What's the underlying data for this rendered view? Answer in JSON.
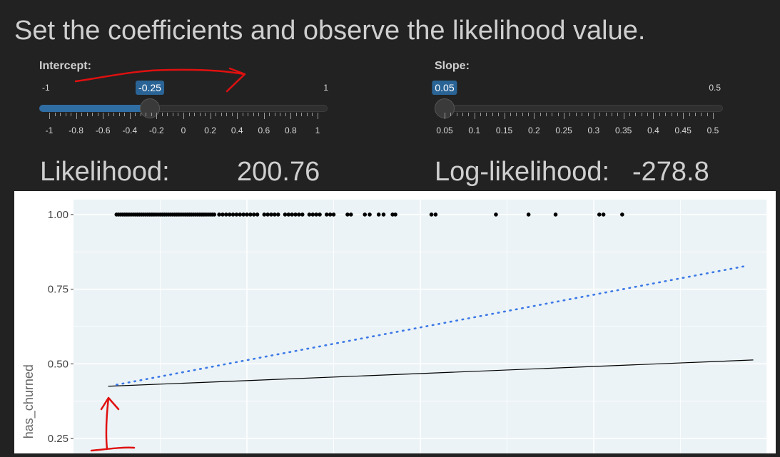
{
  "heading": "Set the coefficients and observe the likelihood value.",
  "intercept": {
    "label": "Intercept:",
    "min_label": "-1",
    "max_label": "1",
    "value_label": "-0.25",
    "min": -1,
    "max": 1,
    "value": -0.25,
    "ticks": [
      "-1",
      "-0.8",
      "-0.6",
      "-0.4",
      "-0.2",
      "0",
      "0.2",
      "0.4",
      "0.6",
      "0.8",
      "1"
    ]
  },
  "slope": {
    "label": "Slope:",
    "min_label": "0.05",
    "max_label": "0.5",
    "value_label": "0.05",
    "min": 0.05,
    "max": 0.5,
    "value": 0.05,
    "ticks": [
      "0.05",
      "0.1",
      "0.15",
      "0.2",
      "0.25",
      "0.3",
      "0.35",
      "0.4",
      "0.45",
      "0.5"
    ]
  },
  "likelihood": {
    "label": "Likelihood:",
    "value": "200.76"
  },
  "log_likelihood": {
    "label": "Log-likelihood:",
    "value": "-278.8"
  },
  "colors": {
    "accent": "#2a6496",
    "panel_bg": "#ebf3f6",
    "dotted_line": "#3b78e7",
    "annotation": "#e01010"
  },
  "chart_data": {
    "type": "scatter",
    "ylabel": "has_churned",
    "xlabel": "",
    "ylim": [
      0.2,
      1.05
    ],
    "xlim": [
      0,
      1
    ],
    "ytick_labels": [
      "1.00",
      "0.75",
      "0.50",
      "0.25"
    ],
    "yticks": [
      1.0,
      0.75,
      0.5,
      0.25
    ],
    "grid": true,
    "points_y": 1.0,
    "points_x": [
      0.062,
      0.065,
      0.068,
      0.071,
      0.074,
      0.077,
      0.08,
      0.083,
      0.086,
      0.089,
      0.092,
      0.095,
      0.098,
      0.101,
      0.104,
      0.107,
      0.11,
      0.113,
      0.116,
      0.119,
      0.122,
      0.125,
      0.128,
      0.131,
      0.134,
      0.137,
      0.14,
      0.143,
      0.146,
      0.149,
      0.152,
      0.155,
      0.158,
      0.161,
      0.164,
      0.167,
      0.17,
      0.173,
      0.176,
      0.179,
      0.182,
      0.185,
      0.188,
      0.191,
      0.194,
      0.197,
      0.2,
      0.203,
      0.21,
      0.215,
      0.22,
      0.225,
      0.23,
      0.235,
      0.24,
      0.245,
      0.25,
      0.255,
      0.26,
      0.265,
      0.275,
      0.28,
      0.285,
      0.29,
      0.295,
      0.305,
      0.31,
      0.315,
      0.32,
      0.325,
      0.33,
      0.34,
      0.345,
      0.35,
      0.355,
      0.365,
      0.37,
      0.375,
      0.395,
      0.4,
      0.42,
      0.427,
      0.44,
      0.447,
      0.46,
      0.464,
      0.516,
      0.522,
      0.609,
      0.656,
      0.695,
      0.758,
      0.764,
      0.791
    ],
    "series": [
      {
        "style": "solid",
        "x": [
          0.05,
          0.98
        ],
        "y": [
          0.425,
          0.513
        ]
      },
      {
        "style": "dotted",
        "x": [
          0.062,
          0.97
        ],
        "y": [
          0.43,
          0.828
        ]
      }
    ]
  }
}
